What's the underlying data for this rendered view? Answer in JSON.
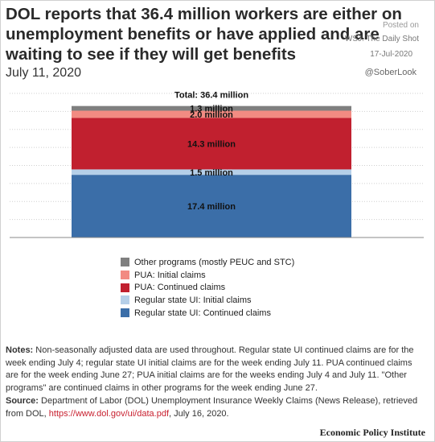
{
  "header": {
    "title": "DOL reports that 36.4 million workers are either on unemployment benefits or have applied and are waiting to see if they will get benefits",
    "date": "July 11, 2020"
  },
  "watermark": {
    "posted_on": "Posted on",
    "source": "WSJ. The Daily Shot",
    "date": "17-Jul-2020",
    "handle": "@SoberLook"
  },
  "chart_data": {
    "type": "bar",
    "stacked": true,
    "categories": [
      "July 11, 2020"
    ],
    "total_label": "Total: 36.4 million",
    "ylim": [
      0,
      40
    ],
    "grid": true,
    "series": [
      {
        "name": "Regular state UI: Continued claims",
        "values": [
          17.4
        ],
        "label": "17.4 million",
        "color": "#3b6ea8"
      },
      {
        "name": "Regular state UI: Initial claims",
        "values": [
          1.5
        ],
        "label": "1.5 million",
        "color": "#b5cfe8"
      },
      {
        "name": "PUA: Continued claims",
        "values": [
          14.3
        ],
        "label": "14.3 million",
        "color": "#c1202f"
      },
      {
        "name": "PUA: Initial claims",
        "values": [
          2.0
        ],
        "label": "2.0 million",
        "color": "#f28b82"
      },
      {
        "name": "Other programs (mostly PEUC and STC)",
        "values": [
          1.3
        ],
        "label": "1.3 million",
        "color": "#7f7f7f"
      }
    ]
  },
  "legend": {
    "items": [
      {
        "label": "Other programs (mostly PEUC and STC)",
        "color": "#7f7f7f"
      },
      {
        "label": "PUA: Initial claims",
        "color": "#f28b82"
      },
      {
        "label": "PUA: Continued claims",
        "color": "#c1202f"
      },
      {
        "label": "Regular state UI: Initial claims",
        "color": "#b5cfe8"
      },
      {
        "label": "Regular state UI: Continued claims",
        "color": "#3b6ea8"
      }
    ]
  },
  "notes": {
    "label": "Notes:",
    "text": "Non-seasonally adjusted data are used throughout. Regular state UI continued claims are for the week ending July 4; regular state UI initial claims are for the week ending July 11. PUA continued claims are for the week ending June 27; PUA initial claims are for the weeks ending July 4 and July 11. \"Other programs\" are continued claims in other programs for the week ending June 27."
  },
  "source": {
    "label": "Source:",
    "text": "Department of Labor (DOL) Unemployment Insurance Weekly Claims (News Release), retrieved from DOL,",
    "link": "https://www.dol.gov/ui/data.pdf",
    "suffix": ", July 16, 2020."
  },
  "brand": "Economic Policy Institute"
}
